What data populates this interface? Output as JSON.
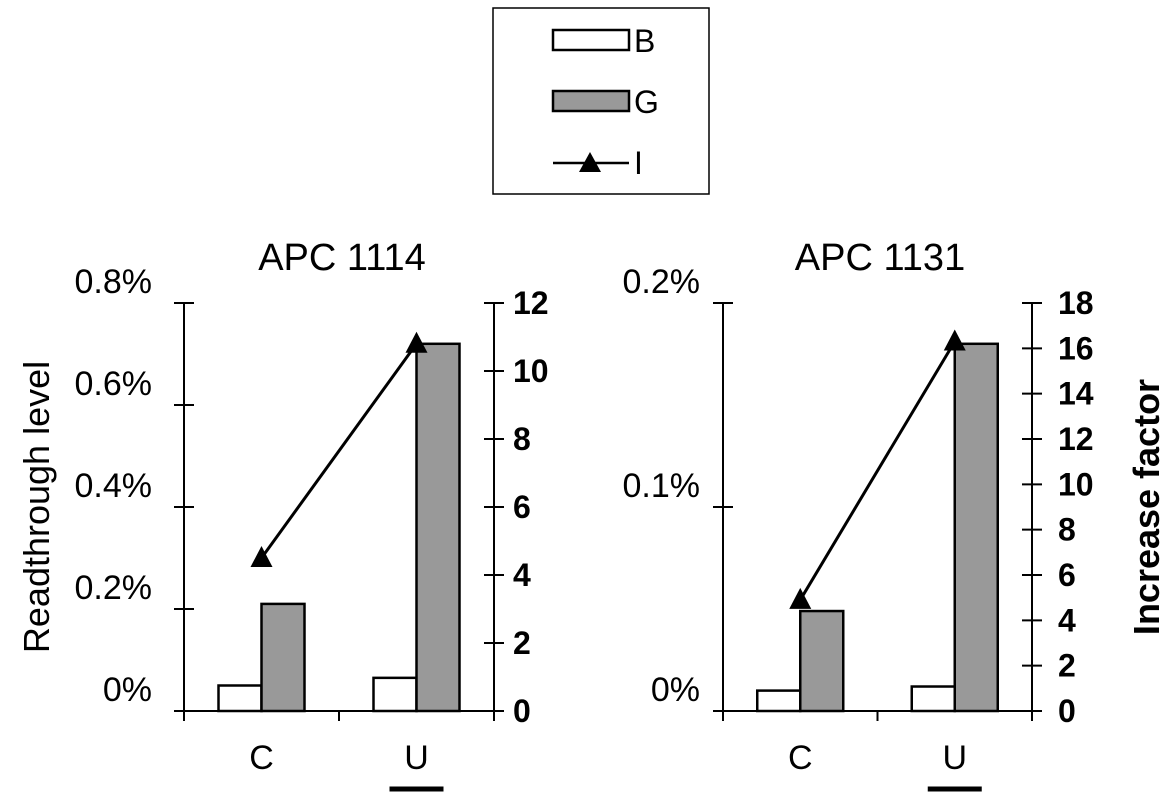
{
  "legend": {
    "items": [
      {
        "label": "B",
        "kind": "bar",
        "fill": "#ffffff"
      },
      {
        "label": "G",
        "kind": "bar",
        "fill": "#999999"
      },
      {
        "label": "I",
        "kind": "line-triangle",
        "fill": "#000000"
      }
    ],
    "placement": "top-center"
  },
  "axes": {
    "y_left_label": "Readthrough level",
    "y_right_label": "Increase factor"
  },
  "colors": {
    "bar_b": "#ffffff",
    "bar_g": "#999999",
    "line": "#000000"
  },
  "chart_data": [
    {
      "type": "bar",
      "title": "APC 1114",
      "categories": [
        "C",
        "U"
      ],
      "underlined_category": "U",
      "series": [
        {
          "name": "B",
          "type": "bar",
          "axis": "left",
          "values": [
            0.0005,
            0.00065
          ]
        },
        {
          "name": "G",
          "type": "bar",
          "axis": "left",
          "values": [
            0.0021,
            0.0072
          ]
        },
        {
          "name": "I",
          "type": "line",
          "axis": "right",
          "values": [
            4.5,
            10.8
          ]
        }
      ],
      "ylabel": "Readthrough level",
      "ylim": [
        0,
        0.008
      ],
      "yticks": [
        0,
        0.002,
        0.004,
        0.006,
        0.008
      ],
      "ytick_labels": [
        "0%",
        "0.2%",
        "0.4%",
        "0.6%",
        "0.8%"
      ],
      "y2label": "",
      "y2lim": [
        0,
        12
      ],
      "y2ticks": [
        0,
        2,
        4,
        6,
        8,
        10,
        12
      ],
      "y2tick_labels": [
        "0",
        "2",
        "4",
        "6",
        "8",
        "10",
        "12"
      ],
      "grid": false
    },
    {
      "type": "bar",
      "title": "APC 1131",
      "categories": [
        "C",
        "U"
      ],
      "underlined_category": "U",
      "series": [
        {
          "name": "B",
          "type": "bar",
          "axis": "left",
          "values": [
            0.0001,
            0.00012
          ]
        },
        {
          "name": "G",
          "type": "bar",
          "axis": "left",
          "values": [
            0.00049,
            0.0018
          ]
        },
        {
          "name": "I",
          "type": "line",
          "axis": "right",
          "values": [
            4.9,
            16.3
          ]
        }
      ],
      "ylabel": "",
      "ylim": [
        0,
        0.002
      ],
      "yticks": [
        0,
        0.001,
        0.002
      ],
      "ytick_labels": [
        "0%",
        "0.1%",
        "0.2%"
      ],
      "y2label": "Increase factor",
      "y2lim": [
        0,
        18
      ],
      "y2ticks": [
        0,
        2,
        4,
        6,
        8,
        10,
        12,
        14,
        16,
        18
      ],
      "y2tick_labels": [
        "0",
        "2",
        "4",
        "6",
        "8",
        "10",
        "12",
        "14",
        "16",
        "18"
      ],
      "grid": false
    }
  ]
}
